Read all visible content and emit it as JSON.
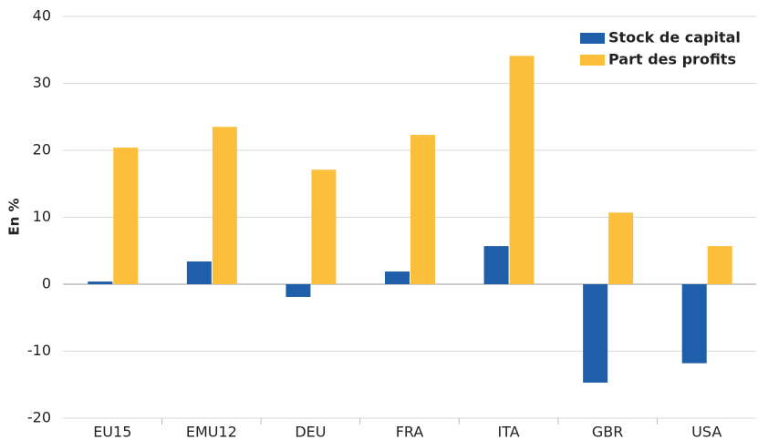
{
  "chart_data": {
    "type": "bar",
    "ylabel": "En %",
    "categories": [
      "EU15",
      "EMU12",
      "DEU",
      "FRA",
      "ITA",
      "GBR",
      "USA"
    ],
    "series": [
      {
        "name": "Stock de capital",
        "color": "#1f5ea8",
        "values": [
          0.4,
          3.4,
          -1.9,
          1.9,
          5.7,
          -14.7,
          -11.8
        ]
      },
      {
        "name": "Part des profits",
        "color": "#fbbf3b",
        "values": [
          20.4,
          23.5,
          17.1,
          22.3,
          34.1,
          10.7,
          5.7
        ]
      }
    ],
    "ylim": [
      -20,
      40
    ],
    "yticks": [
      -20,
      -10,
      0,
      10,
      20,
      30,
      40
    ],
    "grid": true,
    "legend": "top-right"
  }
}
